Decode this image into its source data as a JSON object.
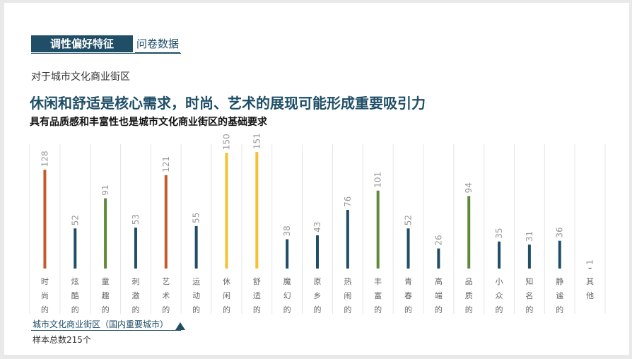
{
  "header": {
    "tag": "调性偏好特征",
    "link": "问卷数据"
  },
  "intro": "对于城市文化商业街区",
  "title": "休闲和舒适是核心需求，时尚、艺术的展现可能形成重要吸引力",
  "subtitle": "具有品质感和丰富性也是城市文化商业街区的基础要求",
  "footer": {
    "label": "城市文化商业街区（国内重要城市）",
    "sample": "样本总数215个"
  },
  "colors": {
    "navy": "#1f4e66",
    "orange": "#c55a2c",
    "green": "#5e8a3a",
    "yellow": "#f2c230"
  },
  "chart_data": {
    "type": "bar",
    "categories": [
      "时尚的",
      "炫酷的",
      "童趣的",
      "刺激的",
      "艺术的",
      "运动的",
      "休闲的",
      "舒适的",
      "魔幻的",
      "原乡的",
      "热闹的",
      "丰富的",
      "青春的",
      "高端的",
      "品质的",
      "小众的",
      "知名的",
      "静谧的",
      "其他"
    ],
    "values": [
      128,
      52,
      91,
      53,
      121,
      55,
      150,
      151,
      38,
      43,
      76,
      101,
      52,
      26,
      94,
      35,
      31,
      36,
      1
    ],
    "bar_colors": [
      "orange",
      "navy",
      "green",
      "navy",
      "orange",
      "navy",
      "yellow",
      "yellow",
      "navy",
      "navy",
      "navy",
      "green",
      "navy",
      "navy",
      "green",
      "navy",
      "navy",
      "navy",
      "navy"
    ],
    "ylim": [
      0,
      152
    ],
    "grid": "vertical separators"
  }
}
